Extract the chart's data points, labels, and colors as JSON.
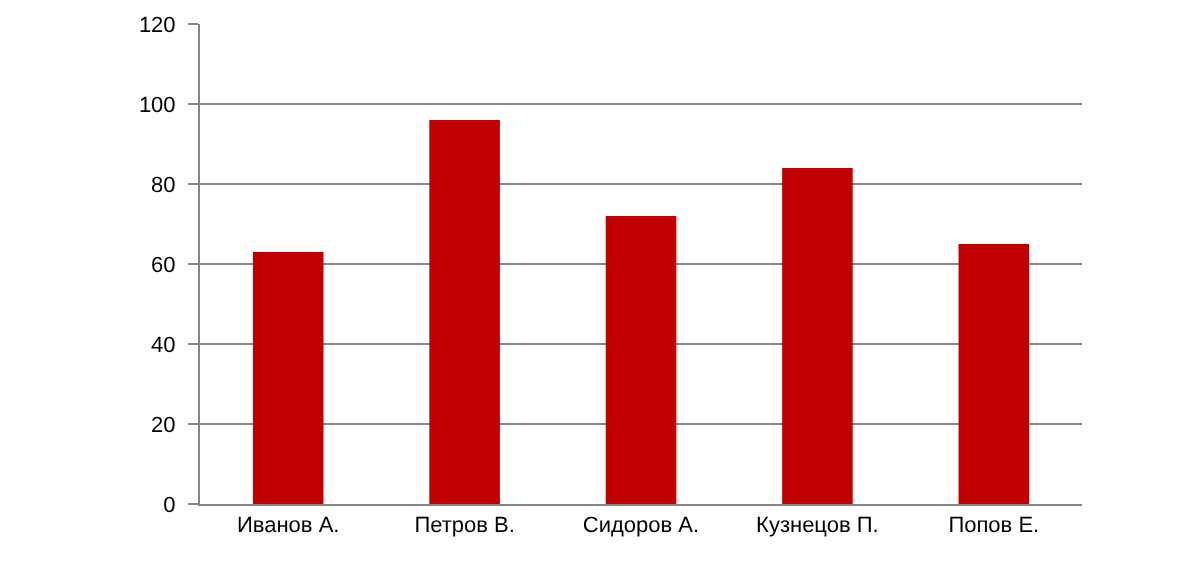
{
  "chart_data": {
    "type": "bar",
    "categories": [
      "Иванов А.",
      "Петров В.",
      "Сидоров А.",
      "Кузнецов П.",
      "Попов Е."
    ],
    "values": [
      63,
      96,
      72,
      84,
      65
    ],
    "color": "#c00000",
    "ylim": [
      0,
      120
    ],
    "yticks": [
      0,
      20,
      40,
      60,
      80,
      100,
      120
    ],
    "grid": "y",
    "legend": false
  }
}
